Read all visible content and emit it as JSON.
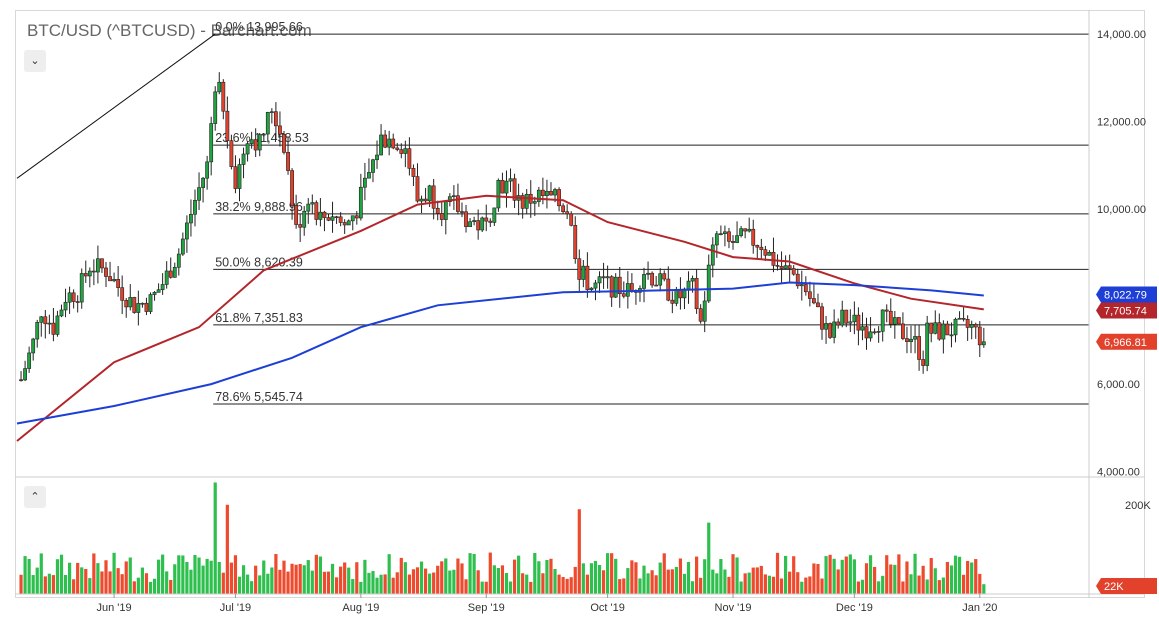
{
  "header": {
    "title": "BTC/USD (^BTCUSD) - Barchart.com",
    "collapse_icon": "chevron-down-icon",
    "expand_icon": "chevron-up-icon"
  },
  "colors": {
    "up": "#21a341",
    "down": "#e2412c",
    "ma_fast": "#b3262b",
    "ma_slow": "#1d3fd6",
    "fib_line": "#222222",
    "volume_up": "#2fbf4f",
    "volume_down": "#ee4a2d"
  },
  "chart_data": {
    "type": "candlestick",
    "symbol": "BTC/USD (^BTCUSD)",
    "price_axis": {
      "ticks": [
        4000,
        6000,
        10000,
        12000,
        14000
      ],
      "tick_labels": [
        "4,000.00",
        "6,000.00",
        "10,000.00",
        "12,000.00",
        "14,000.00"
      ],
      "range": [
        3900,
        14500
      ]
    },
    "volume_axis": {
      "ticks": [
        200000
      ],
      "tick_labels": [
        "200K"
      ]
    },
    "x_axis": {
      "tick_labels": [
        "Jun '19",
        "Jul '19",
        "Aug '19",
        "Sep '19",
        "Oct '19",
        "Nov '19",
        "Dec '19",
        "Jan '20"
      ],
      "tick_dates": [
        "2019-06-01",
        "2019-07-01",
        "2019-08-01",
        "2019-09-01",
        "2019-10-01",
        "2019-11-01",
        "2019-12-01",
        "2020-01-01"
      ],
      "range": [
        "2019-05-08",
        "2020-01-28"
      ]
    },
    "closes": [
      {
        "date": "2019-05-09",
        "close": 6100
      },
      {
        "date": "2019-05-12",
        "close": 6950
      },
      {
        "date": "2019-05-14",
        "close": 7700
      },
      {
        "date": "2019-05-17",
        "close": 7300
      },
      {
        "date": "2019-05-20",
        "close": 8000
      },
      {
        "date": "2019-05-23",
        "close": 8100
      },
      {
        "date": "2019-05-26",
        "close": 8700
      },
      {
        "date": "2019-05-30",
        "close": 8600
      },
      {
        "date": "2019-06-03",
        "close": 8100
      },
      {
        "date": "2019-06-06",
        "close": 7800
      },
      {
        "date": "2019-06-10",
        "close": 7900
      },
      {
        "date": "2019-06-13",
        "close": 8300
      },
      {
        "date": "2019-06-17",
        "close": 9000
      },
      {
        "date": "2019-06-21",
        "close": 10200
      },
      {
        "date": "2019-06-24",
        "close": 11000
      },
      {
        "date": "2019-06-26",
        "close": 12900
      },
      {
        "date": "2019-06-28",
        "close": 12400
      },
      {
        "date": "2019-07-01",
        "close": 10600
      },
      {
        "date": "2019-07-04",
        "close": 11700
      },
      {
        "date": "2019-07-07",
        "close": 11500
      },
      {
        "date": "2019-07-10",
        "close": 12300
      },
      {
        "date": "2019-07-13",
        "close": 11500
      },
      {
        "date": "2019-07-16",
        "close": 9500
      },
      {
        "date": "2019-07-19",
        "close": 10300
      },
      {
        "date": "2019-07-22",
        "close": 9800
      },
      {
        "date": "2019-07-25",
        "close": 9900
      },
      {
        "date": "2019-07-28",
        "close": 9600
      },
      {
        "date": "2019-07-31",
        "close": 10000
      },
      {
        "date": "2019-08-03",
        "close": 10800
      },
      {
        "date": "2019-08-06",
        "close": 11600
      },
      {
        "date": "2019-08-09",
        "close": 11600
      },
      {
        "date": "2019-08-12",
        "close": 11400
      },
      {
        "date": "2019-08-15",
        "close": 10200
      },
      {
        "date": "2019-08-18",
        "close": 10400
      },
      {
        "date": "2019-08-21",
        "close": 10000
      },
      {
        "date": "2019-08-24",
        "close": 10100
      },
      {
        "date": "2019-08-28",
        "close": 9700
      },
      {
        "date": "2019-09-01",
        "close": 9600
      },
      {
        "date": "2019-09-04",
        "close": 10600
      },
      {
        "date": "2019-09-07",
        "close": 10500
      },
      {
        "date": "2019-09-10",
        "close": 10150
      },
      {
        "date": "2019-09-14",
        "close": 10300
      },
      {
        "date": "2019-09-18",
        "close": 10200
      },
      {
        "date": "2019-09-21",
        "close": 10000
      },
      {
        "date": "2019-09-24",
        "close": 8600
      },
      {
        "date": "2019-09-27",
        "close": 8200
      },
      {
        "date": "2019-09-30",
        "close": 8300
      },
      {
        "date": "2019-10-03",
        "close": 8200
      },
      {
        "date": "2019-10-07",
        "close": 8100
      },
      {
        "date": "2019-10-10",
        "close": 8600
      },
      {
        "date": "2019-10-14",
        "close": 8300
      },
      {
        "date": "2019-10-18",
        "close": 7950
      },
      {
        "date": "2019-10-22",
        "close": 8200
      },
      {
        "date": "2019-10-24",
        "close": 7400
      },
      {
        "date": "2019-10-26",
        "close": 8600
      },
      {
        "date": "2019-10-28",
        "close": 9400
      },
      {
        "date": "2019-10-31",
        "close": 9200
      },
      {
        "date": "2019-11-04",
        "close": 9350
      },
      {
        "date": "2019-11-08",
        "close": 9200
      },
      {
        "date": "2019-11-12",
        "close": 8700
      },
      {
        "date": "2019-11-16",
        "close": 8500
      },
      {
        "date": "2019-11-19",
        "close": 8150
      },
      {
        "date": "2019-11-22",
        "close": 7600
      },
      {
        "date": "2019-11-25",
        "close": 7100
      },
      {
        "date": "2019-11-28",
        "close": 7500
      },
      {
        "date": "2019-12-01",
        "close": 7400
      },
      {
        "date": "2019-12-04",
        "close": 7300
      },
      {
        "date": "2019-12-08",
        "close": 7500
      },
      {
        "date": "2019-12-12",
        "close": 7200
      },
      {
        "date": "2019-12-15",
        "close": 7100
      },
      {
        "date": "2019-12-18",
        "close": 6600
      },
      {
        "date": "2019-12-19",
        "close": 7200
      },
      {
        "date": "2019-12-22",
        "close": 7200
      },
      {
        "date": "2019-12-26",
        "close": 7250
      },
      {
        "date": "2019-12-30",
        "close": 7300
      },
      {
        "date": "2020-01-02",
        "close": 6966.81
      }
    ],
    "series": [
      {
        "name": "Moving average (red)",
        "points": [
          {
            "date": "2019-05-08",
            "value": 4700
          },
          {
            "date": "2019-06-01",
            "value": 6500
          },
          {
            "date": "2019-06-22",
            "value": 7300
          },
          {
            "date": "2019-07-08",
            "value": 8600
          },
          {
            "date": "2019-08-01",
            "value": 9500
          },
          {
            "date": "2019-08-15",
            "value": 10100
          },
          {
            "date": "2019-09-01",
            "value": 10300
          },
          {
            "date": "2019-09-20",
            "value": 10200
          },
          {
            "date": "2019-10-01",
            "value": 9700
          },
          {
            "date": "2019-10-20",
            "value": 9250
          },
          {
            "date": "2019-11-01",
            "value": 8900
          },
          {
            "date": "2019-11-15",
            "value": 8800
          },
          {
            "date": "2019-12-01",
            "value": 8300
          },
          {
            "date": "2019-12-15",
            "value": 7950
          },
          {
            "date": "2020-01-02",
            "value": 7705.74
          }
        ]
      },
      {
        "name": "Moving average (blue)",
        "points": [
          {
            "date": "2019-05-08",
            "value": 5100
          },
          {
            "date": "2019-06-01",
            "value": 5500
          },
          {
            "date": "2019-06-25",
            "value": 6000
          },
          {
            "date": "2019-07-15",
            "value": 6600
          },
          {
            "date": "2019-08-01",
            "value": 7300
          },
          {
            "date": "2019-08-20",
            "value": 7800
          },
          {
            "date": "2019-09-20",
            "value": 8100
          },
          {
            "date": "2019-10-10",
            "value": 8130
          },
          {
            "date": "2019-11-01",
            "value": 8180
          },
          {
            "date": "2019-11-15",
            "value": 8320
          },
          {
            "date": "2019-12-01",
            "value": 8260
          },
          {
            "date": "2019-12-20",
            "value": 8140
          },
          {
            "date": "2020-01-02",
            "value": 8022.79
          }
        ]
      }
    ],
    "trendline": [
      {
        "date": "2019-05-08",
        "value": 10700
      },
      {
        "date": "2019-06-26",
        "value": 13995.66
      }
    ],
    "fibonacci": [
      {
        "label": "0.0% 13,995.66",
        "value": 13995.66
      },
      {
        "label": "23.6% 11,458.53",
        "value": 11458.53
      },
      {
        "label": "38.2% 9,888.96",
        "value": 9888.96
      },
      {
        "label": "50.0% 8,620.39",
        "value": 8620.39
      },
      {
        "label": "61.8% 7,351.83",
        "value": 7351.83
      },
      {
        "label": "78.6% 5,545.74",
        "value": 5545.74
      }
    ],
    "fib_start_date": "2019-06-26",
    "last_values": [
      {
        "label": "8,022.79",
        "value": 8022.79,
        "color": "#1d3fd6",
        "side": "upper"
      },
      {
        "label": "7,705.74",
        "value": 7705.74,
        "color": "#b3262b",
        "side": "lower"
      },
      {
        "label": "6,966.81",
        "value": 6966.81,
        "color": "#e2412c",
        "side": "center"
      }
    ],
    "volume_last": {
      "label": "22K",
      "value": 22000,
      "color": "#e2412c"
    },
    "volume_spikes": [
      {
        "date": "2019-06-26",
        "value": 250000
      },
      {
        "date": "2019-06-29",
        "value": 200000
      },
      {
        "date": "2019-09-24",
        "value": 190000
      },
      {
        "date": "2019-10-26",
        "value": 160000
      }
    ],
    "volume_baseline": 60000,
    "volume_range": [
      0,
      260000
    ],
    "grid": false,
    "legend": "none"
  }
}
